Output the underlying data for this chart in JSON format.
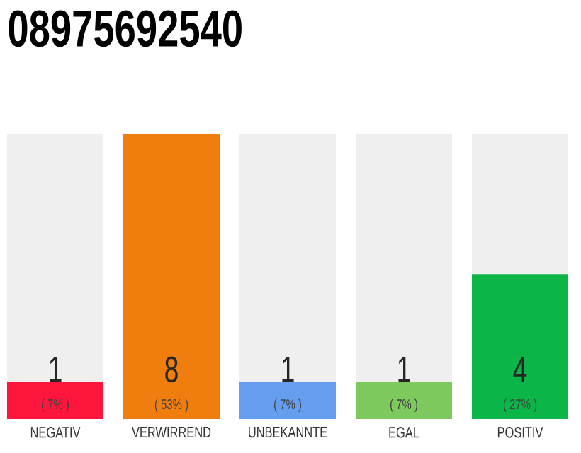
{
  "chart_data": {
    "type": "bar",
    "title": "08975692540",
    "categories": [
      "NEGATIV",
      "VERWIRREND",
      "UNBEKANNTE",
      "EGAL",
      "POSITIV"
    ],
    "values": [
      7,
      53,
      7,
      7,
      27
    ],
    "annotations": [
      "1",
      "8",
      "1",
      "1",
      "4"
    ],
    "colors": [
      "#ff163c",
      "#f07e0e",
      "#659eee",
      "#7dc95e",
      "#0bb548"
    ],
    "value_labels": [
      "( 7% )",
      "( 53% )",
      "( 7% )",
      "( 7% )",
      "( 27% )"
    ]
  }
}
